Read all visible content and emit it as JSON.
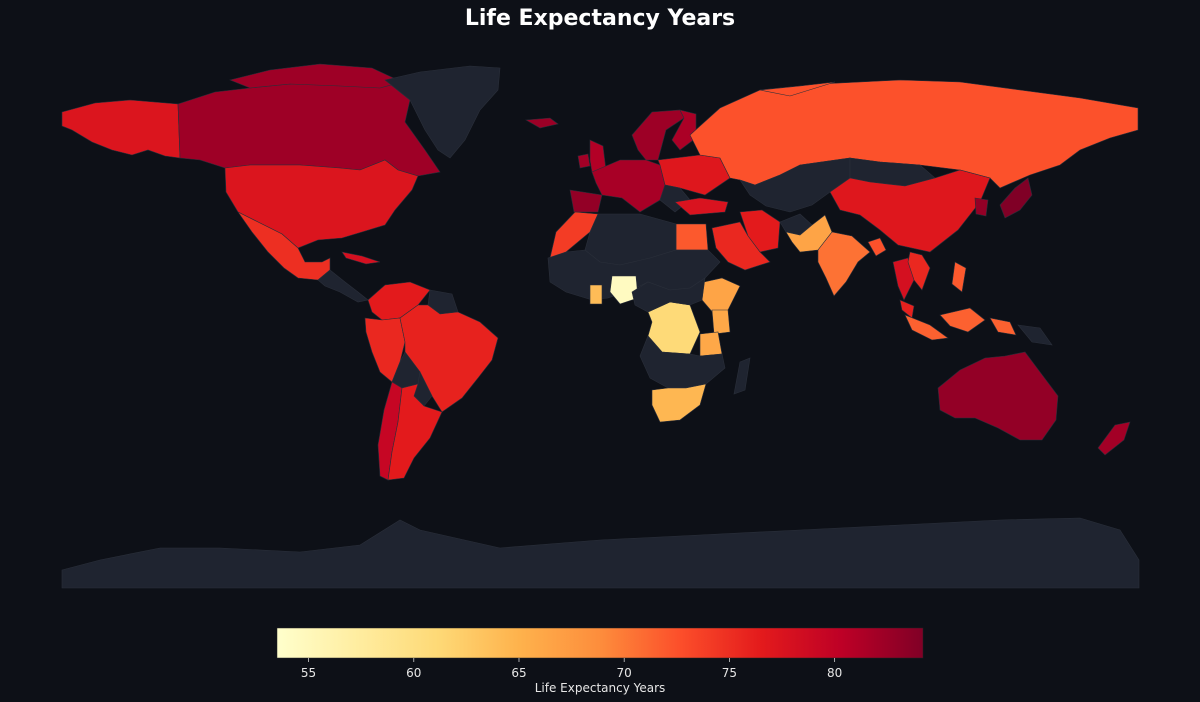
{
  "title": "Life Expectancy Years",
  "colors": {
    "background": "#0d1017",
    "no_data": "#1f2430",
    "border": "#2a2f3a",
    "scale": [
      "#ffffcc",
      "#ffeda0",
      "#fed976",
      "#feb24c",
      "#fd8d3c",
      "#fc4e2a",
      "#e31a1c",
      "#bd0026",
      "#800026"
    ]
  },
  "colorbar": {
    "label": "Life Expectancy Years",
    "range": [
      53.5,
      84.2
    ],
    "ticks": [
      55,
      60,
      65,
      70,
      75,
      80
    ]
  },
  "chart_data": {
    "type": "choropleth",
    "title": "Life Expectancy Years",
    "value_label": "Life Expectancy Years",
    "scale_range": [
      53.5,
      84.2
    ],
    "regions": [
      {
        "name": "Canada",
        "value": 82.3
      },
      {
        "name": "Alaska (United States)",
        "value": 77.3
      },
      {
        "name": "United States",
        "value": 77.3
      },
      {
        "name": "Mexico",
        "value": 75.0
      },
      {
        "name": "Cuba",
        "value": 78.0
      },
      {
        "name": "Greenland",
        "value": null
      },
      {
        "name": "Central America",
        "value": null
      },
      {
        "name": "Colombia / Venezuela",
        "value": 76.5
      },
      {
        "name": "Guianas",
        "value": null
      },
      {
        "name": "Peru / Ecuador",
        "value": 75.5
      },
      {
        "name": "Brazil",
        "value": 75.9
      },
      {
        "name": "Bolivia",
        "value": null
      },
      {
        "name": "Paraguay",
        "value": null
      },
      {
        "name": "Chile",
        "value": 79.5
      },
      {
        "name": "Argentina",
        "value": 76.5
      },
      {
        "name": "Iceland",
        "value": 82.5
      },
      {
        "name": "United Kingdom",
        "value": 81.0
      },
      {
        "name": "Ireland",
        "value": 82.0
      },
      {
        "name": "Scandinavia",
        "value": 82.4
      },
      {
        "name": "Finland",
        "value": 81.5
      },
      {
        "name": "Western Europe",
        "value": 81.7
      },
      {
        "name": "Eastern Europe",
        "value": 77.0
      },
      {
        "name": "Balkans",
        "value": null
      },
      {
        "name": "Iberia",
        "value": 83.0
      },
      {
        "name": "Turkey",
        "value": 77.5
      },
      {
        "name": "Russia",
        "value": 72.5
      },
      {
        "name": "Central Asia",
        "value": null
      },
      {
        "name": "China",
        "value": 77.0
      },
      {
        "name": "Mongolia",
        "value": null
      },
      {
        "name": "Korea",
        "value": 83.0
      },
      {
        "name": "Japan",
        "value": 84.2
      },
      {
        "name": "Iran",
        "value": 76.5
      },
      {
        "name": "Saudi Arabia",
        "value": 75.5
      },
      {
        "name": "Egypt",
        "value": 72.0
      },
      {
        "name": "Morocco / West Sahara",
        "value": 74.0
      },
      {
        "name": "Algeria / Libya",
        "value": null
      },
      {
        "name": "Pakistan",
        "value": 66.5
      },
      {
        "name": "Afghanistan",
        "value": null
      },
      {
        "name": "India",
        "value": 70.5
      },
      {
        "name": "Bangladesh",
        "value": 72.5
      },
      {
        "name": "Thailand",
        "value": 78.0
      },
      {
        "name": "Vietnam",
        "value": 75.5
      },
      {
        "name": "Indonesia",
        "value": 71.5
      },
      {
        "name": "Philippines",
        "value": 72.0
      },
      {
        "name": "Malaysia",
        "value": 76.0
      },
      {
        "name": "Nigeria",
        "value": 54.5
      },
      {
        "name": "Ghana",
        "value": 64.0
      },
      {
        "name": "Sahel",
        "value": null
      },
      {
        "name": "Ethiopia",
        "value": 66.5
      },
      {
        "name": "Kenya",
        "value": 66.0
      },
      {
        "name": "Tanzania",
        "value": 66.0
      },
      {
        "name": "DR Congo",
        "value": 61.0
      },
      {
        "name": "Southern Central Africa",
        "value": null
      },
      {
        "name": "Madagascar",
        "value": null
      },
      {
        "name": "South Africa",
        "value": 64.5
      },
      {
        "name": "Australia",
        "value": 83.0
      },
      {
        "name": "New Zealand",
        "value": 82.0
      },
      {
        "name": "Papua New Guinea",
        "value": null
      },
      {
        "name": "Antarctica",
        "value": null
      }
    ]
  }
}
